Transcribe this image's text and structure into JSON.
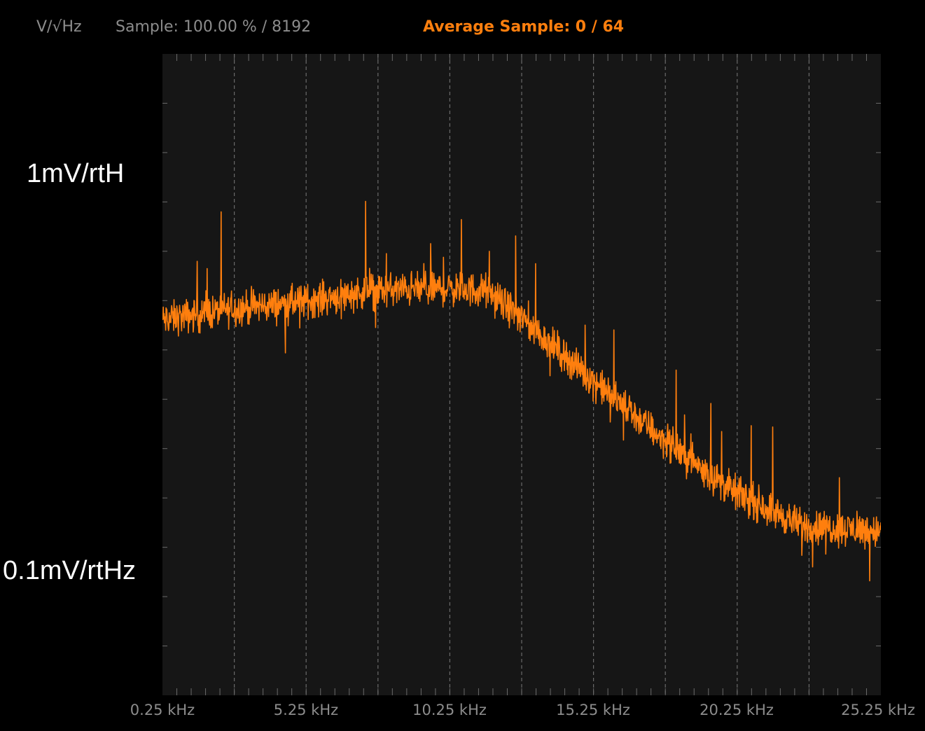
{
  "header": {
    "unit_label": "V/√Hz",
    "sample_label": "Sample: 100.00 % / 8192",
    "average_label": "Average Sample: 0 / 64"
  },
  "colors": {
    "background": "#000000",
    "plot_background": "#161616",
    "grid": "#6a6a6a",
    "trace": "#ff7f0e",
    "header_text": "#8c8c8c",
    "average_text": "#ff7f0e"
  },
  "chart_data": {
    "type": "line",
    "title": "",
    "xlabel": "",
    "ylabel": "",
    "x_unit": "kHz",
    "y_scale": "log",
    "xlim": [
      0.25,
      25.25
    ],
    "ylim": [
      0.05,
      3.2
    ],
    "x_ticks": [
      "0.25 kHz",
      "5.25 kHz",
      "10.25 kHz",
      "15.25 kHz",
      "20.25 kHz",
      "25.25 kHz"
    ],
    "y_labels": [
      {
        "text": "1mV/rtH",
        "value": 1.7
      },
      {
        "text": "0.1mV/rtHz",
        "value": 0.11
      }
    ],
    "grid": true,
    "series": [
      {
        "color": "#ff7f0e",
        "x": [
          0.25,
          2.5,
          5.0,
          7.5,
          10.0,
          11.5,
          12.5,
          15.0,
          17.5,
          20.0,
          22.5,
          25.25
        ],
        "y": [
          0.57,
          0.61,
          0.64,
          0.69,
          0.7,
          0.69,
          0.6,
          0.4,
          0.27,
          0.19,
          0.15,
          0.145
        ]
      }
    ]
  }
}
